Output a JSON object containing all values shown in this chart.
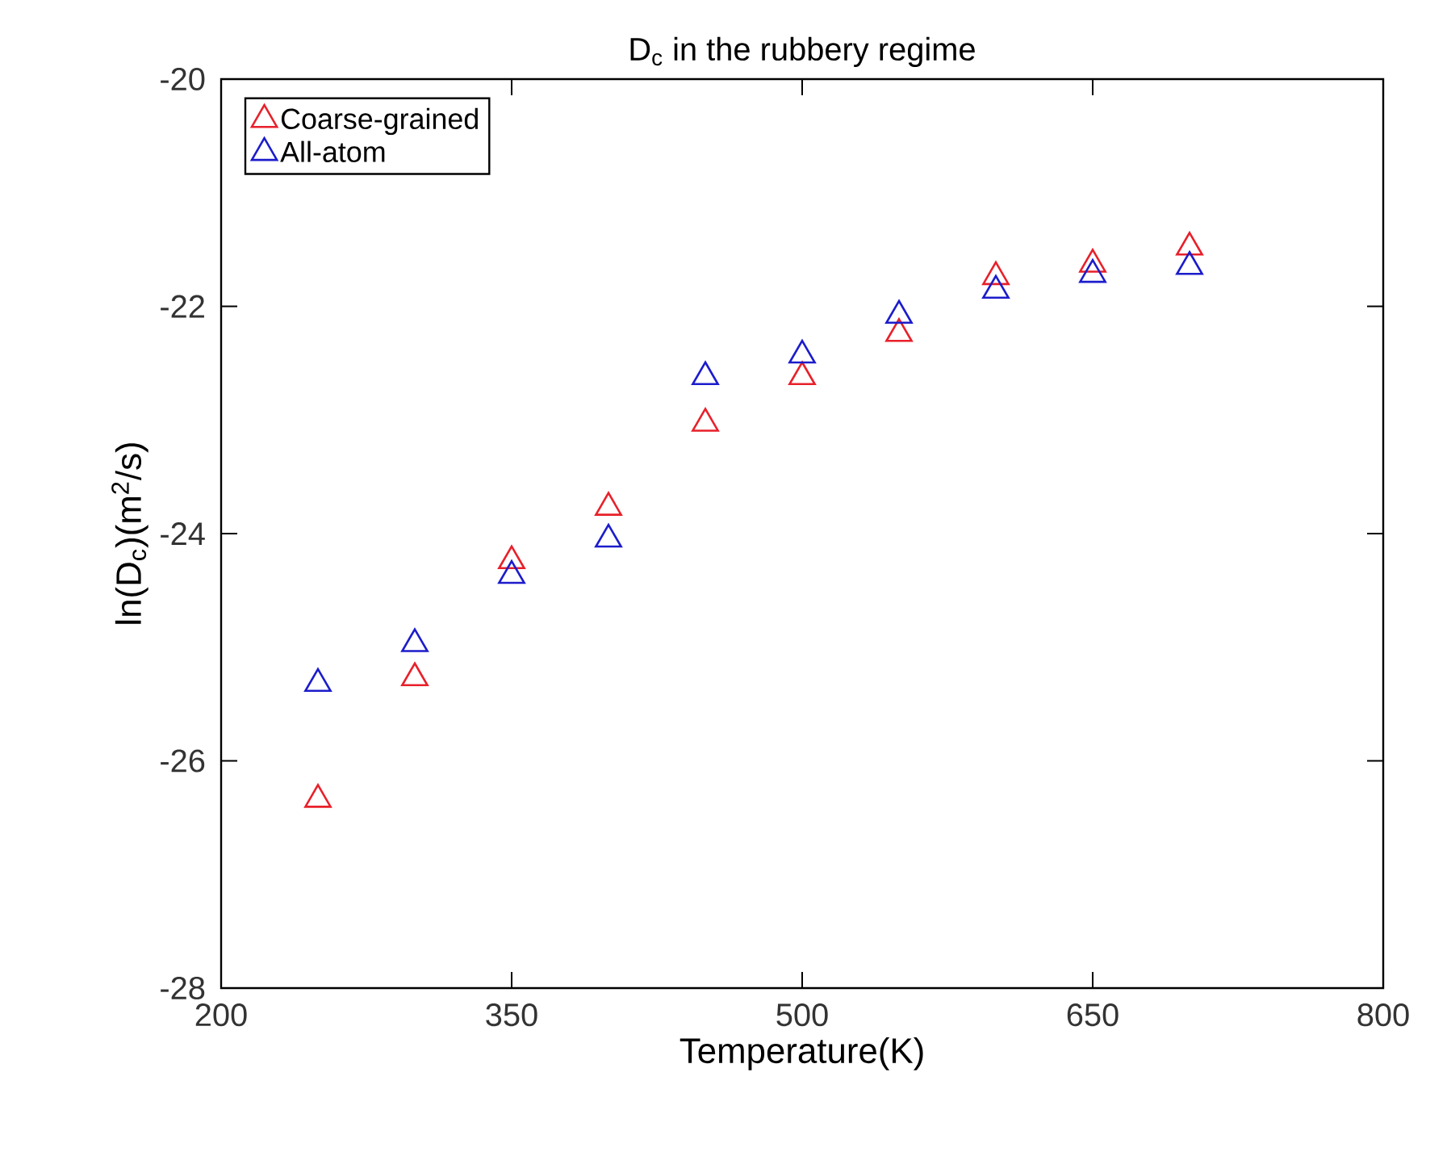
{
  "chart_data": {
    "type": "scatter",
    "title": "D$_{c}$ in the rubbery regime",
    "xlabel": "Temperature(K)",
    "ylabel": "ln(D$_{c}$)(m$^{2}$/s)",
    "x": [
      250,
      300,
      350,
      400,
      450,
      500,
      550,
      600,
      650,
      700
    ],
    "series": [
      {
        "name": "Coarse-grained",
        "color": "#e8202a",
        "values": [
          -26.34,
          -25.27,
          -24.24,
          -23.77,
          -23.03,
          -22.62,
          -22.24,
          -21.74,
          -21.63,
          -21.48
        ]
      },
      {
        "name": "All-atom",
        "color": "#1c1ccc",
        "values": [
          -25.32,
          -24.97,
          -24.37,
          -24.05,
          -22.62,
          -22.43,
          -22.08,
          -21.86,
          -21.72,
          -21.65
        ]
      }
    ],
    "xlim": [
      200,
      800
    ],
    "xticks": [
      200,
      350,
      500,
      650,
      800
    ],
    "ylim": [
      -28,
      -20
    ],
    "yticks": [
      -28,
      -26,
      -24,
      -22,
      -20
    ],
    "marker": "triangle",
    "legend": "top left",
    "grid": false
  }
}
